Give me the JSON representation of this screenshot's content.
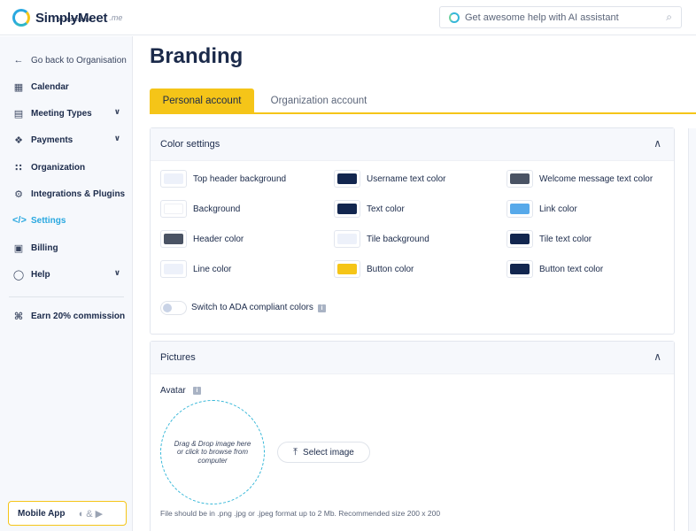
{
  "app": {
    "logo_name": "SimplyMeet",
    "logo_suffix": ".me",
    "logo_by": "by team.blue",
    "ai_placeholder": "Get awesome help with AI assistant"
  },
  "sidebar": {
    "back_label": "Go back to Organisation",
    "items": [
      {
        "label": "Calendar",
        "icon": "calendar-icon"
      },
      {
        "label": "Meeting Types",
        "icon": "grid-icon"
      },
      {
        "label": "Payments",
        "icon": "tag-icon"
      },
      {
        "label": "Organization",
        "icon": "org-icon"
      },
      {
        "label": "Integrations & Plugins",
        "icon": "plug-icon"
      },
      {
        "label": "Settings",
        "icon": "code-icon"
      },
      {
        "label": "Billing",
        "icon": "billing-icon"
      },
      {
        "label": "Help",
        "icon": "chat-icon"
      }
    ],
    "commission_label": "Earn 20% commission",
    "mobile_app_label": "Mobile App",
    "mobile_app_sep": "&"
  },
  "main": {
    "title": "Branding",
    "tabs": [
      {
        "label": "Personal account"
      },
      {
        "label": "Organization account"
      }
    ],
    "color_settings": {
      "title": "Color settings",
      "swatches": [
        {
          "label": "Top header background",
          "color": "#edf1fa"
        },
        {
          "label": "Username text color",
          "color": "#12264f"
        },
        {
          "label": "Welcome message text color",
          "color": "#4a5364"
        },
        {
          "label": "Background",
          "color": "#ffffff"
        },
        {
          "label": "Text color",
          "color": "#12264f"
        },
        {
          "label": "Link color",
          "color": "#57a9ea"
        },
        {
          "label": "Header color",
          "color": "#4a5364"
        },
        {
          "label": "Tile background",
          "color": "#edf1fa"
        },
        {
          "label": "Tile text color",
          "color": "#12264f"
        },
        {
          "label": "Line color",
          "color": "#edf1fa"
        },
        {
          "label": "Button color",
          "color": "#f5c518"
        },
        {
          "label": "Button text color",
          "color": "#12264f"
        }
      ],
      "ada_label": "Switch to ADA compliant colors"
    },
    "pictures": {
      "title": "Pictures",
      "avatar_label": "Avatar",
      "dropzone_text": "Drag & Drop image here or click to browse from computer",
      "select_label": "Select image",
      "file_note": "File should be in .png .jpg or .jpeg format up to 2 Mb. Recommended size 200 x 200"
    }
  }
}
